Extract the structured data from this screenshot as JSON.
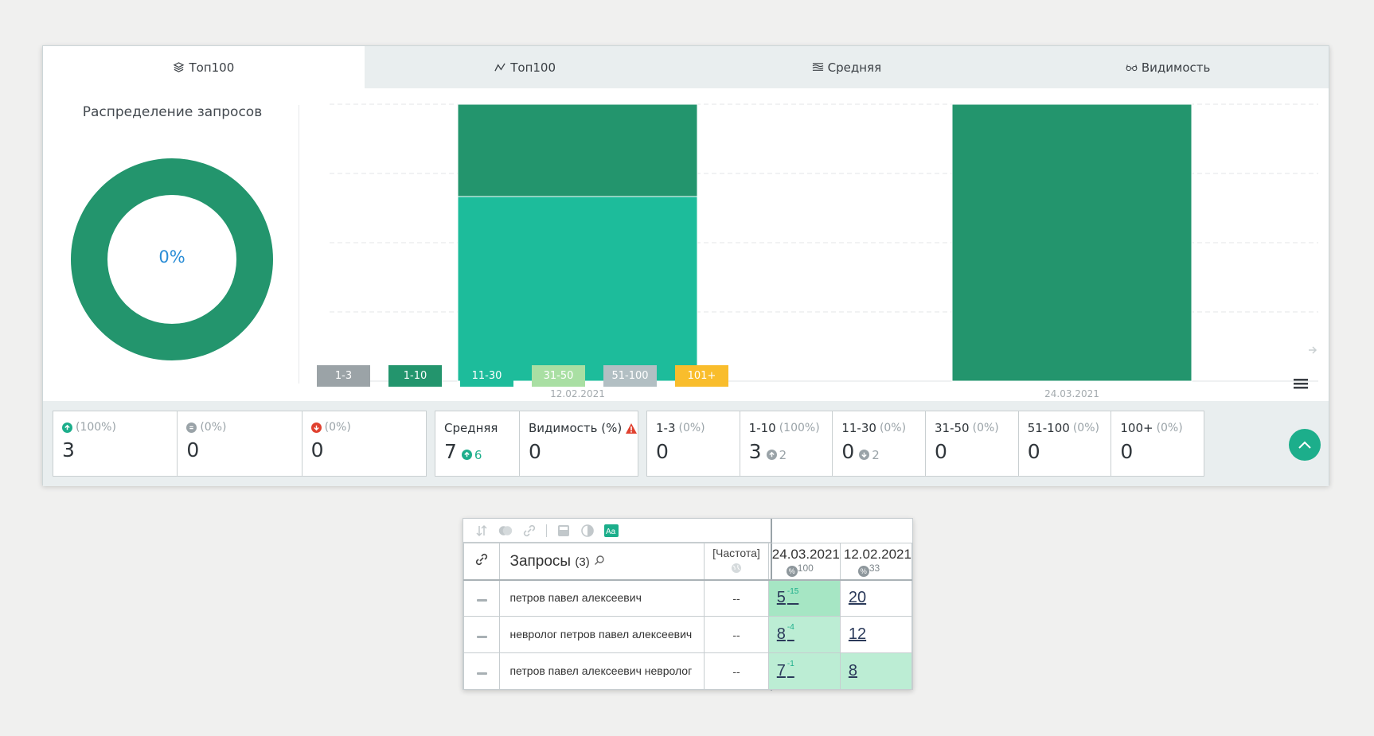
{
  "tabs": [
    {
      "label": "Топ100",
      "icon": "layers-icon",
      "active": true
    },
    {
      "label": "Топ100",
      "icon": "line-chart-icon",
      "active": false
    },
    {
      "label": "Средняя",
      "icon": "average-icon",
      "active": false
    },
    {
      "label": "Видимость",
      "icon": "glasses-icon",
      "active": false
    }
  ],
  "distribution": {
    "title": "Распределение запросов",
    "center_label": "0%",
    "color": "#23956d"
  },
  "chart_data": {
    "type": "bar",
    "stacked": true,
    "categories": [
      "12.02.2021",
      "24.03.2021"
    ],
    "series": [
      {
        "name": "11-30",
        "color": "#1dbc9b",
        "values": [
          2,
          0
        ]
      },
      {
        "name": "1-10",
        "color": "#23956d",
        "values": [
          1,
          3
        ]
      }
    ],
    "ylim": [
      0,
      3
    ],
    "grid": true
  },
  "legend": [
    {
      "label": "1-3",
      "color": "#9ba3a7"
    },
    {
      "label": "1-10",
      "color": "#23956d"
    },
    {
      "label": "11-30",
      "color": "#1dbc9b"
    },
    {
      "label": "31-50",
      "color": "#a9dfa3"
    },
    {
      "label": "51-100",
      "color": "#b2bfc3"
    },
    {
      "label": "101+",
      "color": "#f9bd2c"
    }
  ],
  "stats": {
    "changes": [
      {
        "icon": "arrow-up-icon",
        "pct": "(100%)",
        "value": "3",
        "color": "#1cae8b"
      },
      {
        "icon": "equal-icon",
        "pct": "(0%)",
        "value": "0",
        "color": "#9aa3a8"
      },
      {
        "icon": "arrow-down-icon",
        "pct": "(0%)",
        "value": "0",
        "color": "#e0412f"
      }
    ],
    "average": {
      "label": "Средняя",
      "value": "7",
      "delta": "6"
    },
    "visibility": {
      "label": "Видимость (%)",
      "value": "0"
    },
    "ranges": [
      {
        "label": "1-3",
        "pct": "(0%)",
        "value": "0",
        "delta": ""
      },
      {
        "label": "1-10",
        "pct": "(100%)",
        "value": "3",
        "delta": "2",
        "dir": "up"
      },
      {
        "label": "11-30",
        "pct": "(0%)",
        "value": "0",
        "delta": "2",
        "dir": "down"
      },
      {
        "label": "31-50",
        "pct": "(0%)",
        "value": "0",
        "delta": ""
      },
      {
        "label": "51-100",
        "pct": "(0%)",
        "value": "0",
        "delta": ""
      },
      {
        "label": "100+",
        "pct": "(0%)",
        "value": "0",
        "delta": ""
      }
    ]
  },
  "table": {
    "queries_label": "Запросы",
    "queries_count": "(3)",
    "freq_label": "[Частота]",
    "dates": [
      {
        "date": "24.03.2021",
        "badge": "100"
      },
      {
        "date": "12.02.2021",
        "badge": "33"
      }
    ],
    "rows": [
      {
        "query": "петров павел алексеевич",
        "freq": "--",
        "pos1": "5",
        "delta1": "-15",
        "pos2": "20",
        "bg1": "g1",
        "bg2": ""
      },
      {
        "query": "невролог петров павел алексеевич",
        "freq": "--",
        "pos1": "8",
        "delta1": "-4",
        "pos2": "12",
        "bg1": "g2",
        "bg2": ""
      },
      {
        "query": "петров павел алексеевич невролог",
        "freq": "--",
        "pos1": "7",
        "delta1": "-1",
        "pos2": "8",
        "bg1": "g2",
        "bg2": "g2"
      }
    ]
  }
}
